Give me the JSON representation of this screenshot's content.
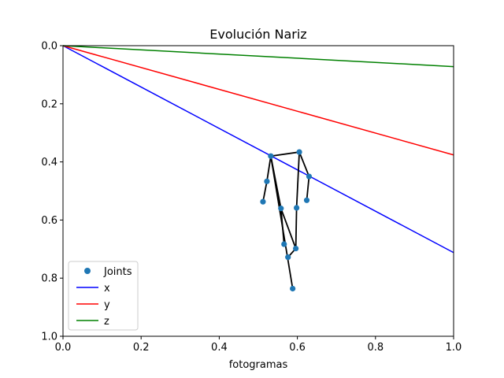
{
  "chart_data": {
    "type": "line",
    "title": "Evolución Nariz",
    "xlabel": "fotogramas",
    "ylabel": "",
    "xlim": [
      0.0,
      1.0
    ],
    "ylim": [
      1.0,
      0.0
    ],
    "y_inverted": true,
    "grid": false,
    "legend_position": "lower-left",
    "xticks": [
      "0.0",
      "0.2",
      "0.4",
      "0.6",
      "0.8",
      "1.0"
    ],
    "yticks": [
      "0.0",
      "0.2",
      "0.4",
      "0.6",
      "0.8",
      "1.0"
    ],
    "xtick_values": [
      0.0,
      0.2,
      0.4,
      0.6,
      0.8,
      1.0
    ],
    "ytick_values": [
      0.0,
      0.2,
      0.4,
      0.6,
      0.8,
      1.0
    ],
    "series": [
      {
        "name": "x",
        "color": "#0000ff",
        "x": [
          0.0,
          1.0
        ],
        "y": [
          0.0,
          0.712
        ]
      },
      {
        "name": "y",
        "color": "#ff0000",
        "x": [
          0.0,
          1.0
        ],
        "y": [
          0.0,
          0.376
        ]
      },
      {
        "name": "z",
        "color": "#008000",
        "x": [
          0.0,
          1.0
        ],
        "y": [
          0.0,
          0.072
        ]
      }
    ],
    "joints": {
      "name": "Joints",
      "color": "#1f77b4",
      "skeleton_color": "#000000",
      "points": [
        {
          "x": 0.605,
          "y": 0.366
        },
        {
          "x": 0.532,
          "y": 0.38
        },
        {
          "x": 0.63,
          "y": 0.45
        },
        {
          "x": 0.522,
          "y": 0.467
        },
        {
          "x": 0.624,
          "y": 0.532
        },
        {
          "x": 0.512,
          "y": 0.537
        },
        {
          "x": 0.598,
          "y": 0.558
        },
        {
          "x": 0.558,
          "y": 0.56
        },
        {
          "x": 0.566,
          "y": 0.683
        },
        {
          "x": 0.596,
          "y": 0.698
        },
        {
          "x": 0.576,
          "y": 0.728
        },
        {
          "x": 0.588,
          "y": 0.836
        }
      ],
      "edges": [
        [
          5,
          3
        ],
        [
          3,
          1
        ],
        [
          1,
          0
        ],
        [
          0,
          2
        ],
        [
          2,
          4
        ],
        [
          1,
          7
        ],
        [
          7,
          8
        ],
        [
          7,
          9
        ],
        [
          0,
          6
        ],
        [
          6,
          9
        ],
        [
          9,
          10
        ],
        [
          1,
          11
        ]
      ]
    }
  }
}
